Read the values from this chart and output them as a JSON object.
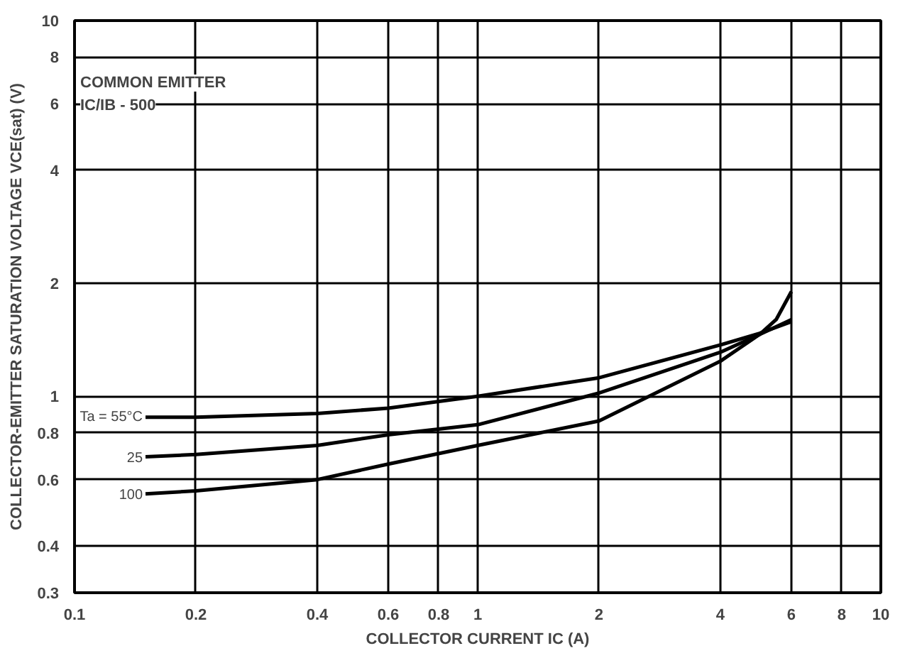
{
  "chart_data": {
    "type": "line",
    "xlabel": "COLLECTOR CURRENT IC (A)",
    "ylabel": "COLLECTOR-EMITTER SATURATION VOLTAGE VCE(sat) (V)",
    "annotations": [
      "COMMON EMITTER",
      "IC/IB - 500"
    ],
    "log": "xy",
    "grid": true,
    "marker": "none",
    "line_style": "solid",
    "xlim": [
      0.1,
      10
    ],
    "ylim": [
      0.3,
      10
    ],
    "xticks": [
      0.1,
      0.2,
      0.4,
      0.6,
      0.8,
      1,
      2,
      4,
      6,
      8,
      10
    ],
    "yticks": [
      0.3,
      0.4,
      0.6,
      0.8,
      1,
      2,
      4,
      6,
      8,
      10
    ],
    "series": [
      {
        "name": "Ta = 55°C",
        "color": "#000000",
        "x": [
          0.15,
          0.2,
          0.4,
          0.6,
          1,
          2,
          4,
          5,
          6
        ],
        "values": [
          0.88,
          0.88,
          0.9,
          0.93,
          1.0,
          1.12,
          1.37,
          1.47,
          1.58
        ]
      },
      {
        "name": "25",
        "color": "#000000",
        "x": [
          0.15,
          0.2,
          0.4,
          0.6,
          1,
          2,
          4,
          5,
          6
        ],
        "values": [
          0.69,
          0.7,
          0.74,
          0.79,
          0.84,
          1.02,
          1.31,
          1.46,
          1.6
        ]
      },
      {
        "name": "100",
        "color": "#000000",
        "x": [
          0.15,
          0.2,
          0.4,
          0.6,
          1,
          2,
          4,
          5,
          5.5,
          6
        ],
        "values": [
          0.55,
          0.56,
          0.6,
          0.66,
          0.74,
          0.86,
          1.24,
          1.46,
          1.6,
          1.9
        ]
      }
    ]
  }
}
